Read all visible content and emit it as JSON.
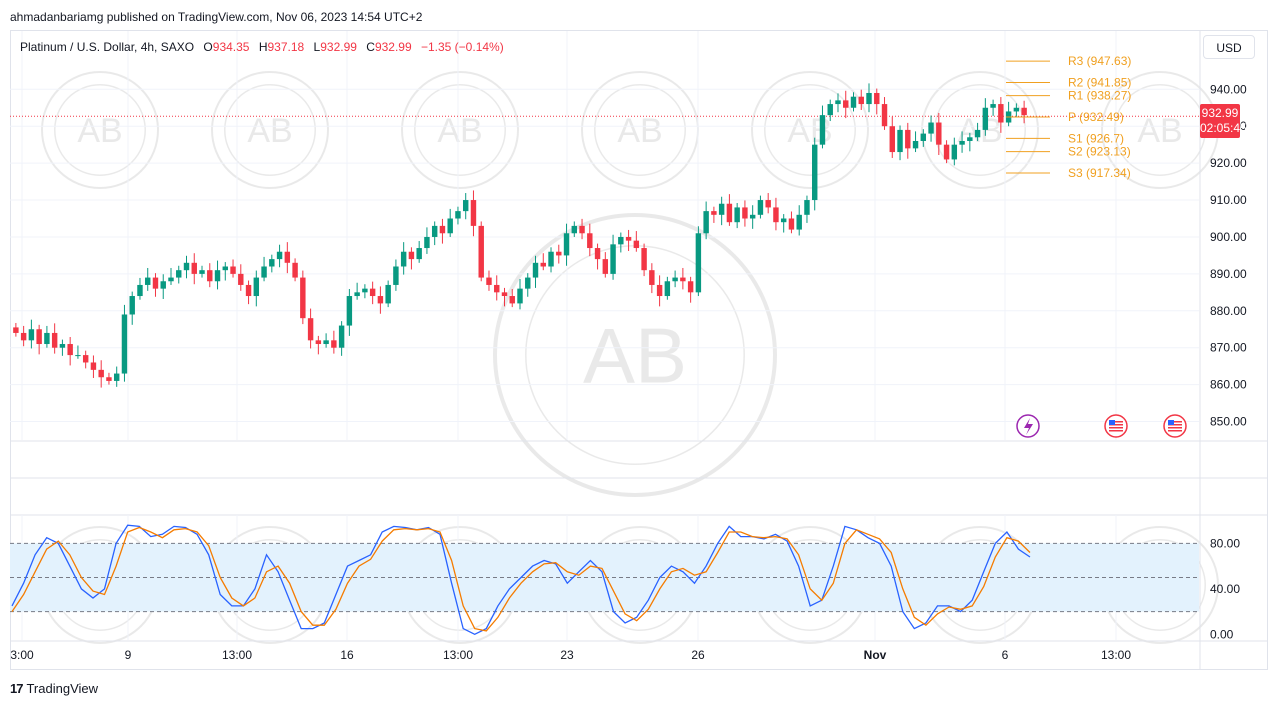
{
  "published": "ahmadanbariamg published on TradingView.com, Nov 06, 2023 14:54 UTC+2",
  "legend": {
    "symbol": "Platinum / U.S. Dollar, 4h, SAXO",
    "open_label": "O",
    "open": "934.35",
    "high_label": "H",
    "high": "937.18",
    "low_label": "L",
    "low": "932.99",
    "close_label": "C",
    "close": "932.99",
    "change": "−1.35 (−0.14%)"
  },
  "currency_button": "USD",
  "last_price": {
    "price": "932.99",
    "countdown": "02:05:45"
  },
  "watermark_text": "AB",
  "brand": "TradingView",
  "colors": {
    "up": "#089981",
    "down": "#f23645",
    "pivot": "#f0a020",
    "k_line": "#2962ff",
    "d_line": "#f57c00",
    "band": "#e3f2fd"
  },
  "chart_data": [
    {
      "type": "candlestick",
      "title": "Platinum / U.S. Dollar, 4h, SAXO",
      "ylim": [
        845,
        952
      ],
      "y_ticks": [
        "940.00",
        "930.00",
        "920.00",
        "910.00",
        "900.00",
        "890.00",
        "880.00",
        "870.00",
        "860.00",
        "850.00"
      ],
      "x_tick_labels": [
        "3:00",
        "9",
        "13:00",
        "16",
        "13:00",
        "23",
        "26",
        "Nov",
        "6",
        "13:00"
      ],
      "close_series": [
        874,
        872,
        875,
        871,
        874,
        870,
        871,
        868,
        868,
        866,
        864,
        862,
        861,
        863,
        879,
        884,
        887,
        889,
        886,
        888,
        889,
        891,
        893,
        890,
        891,
        888,
        891,
        892,
        890,
        887,
        884,
        889,
        892,
        894,
        896,
        893,
        889,
        878,
        872,
        871,
        872,
        870,
        876,
        884,
        885,
        886,
        884,
        882,
        887,
        892,
        896,
        894,
        897,
        900,
        903,
        901,
        905,
        907,
        910,
        903,
        889,
        887,
        885,
        884,
        882,
        886,
        889,
        893,
        892,
        896,
        895,
        901,
        903,
        901,
        897,
        894,
        890,
        898,
        900,
        899,
        897,
        891,
        887,
        884,
        888,
        889,
        888,
        885,
        901,
        907,
        906,
        909,
        904,
        908,
        905,
        906,
        910,
        908,
        904,
        905,
        902,
        906,
        910,
        925,
        933,
        936,
        937,
        935,
        938,
        936,
        939,
        936,
        930,
        923,
        929,
        924,
        926,
        928,
        931,
        925,
        921,
        925,
        926,
        927,
        929,
        935,
        936,
        931,
        934,
        935,
        933
      ],
      "pivots": [
        {
          "label": "R3",
          "value": 947.63,
          "text": "R3 (947.63)"
        },
        {
          "label": "R2",
          "value": 941.85,
          "text": "R2 (941.85)"
        },
        {
          "label": "R1",
          "value": 938.27,
          "text": "R1 (938.27)"
        },
        {
          "label": "P",
          "value": 932.49,
          "text": "P (932.49)"
        },
        {
          "label": "S1",
          "value": 926.7,
          "text": "S1 (926.7)"
        },
        {
          "label": "S2",
          "value": 923.13,
          "text": "S2 (923.13)"
        },
        {
          "label": "S3",
          "value": 917.34,
          "text": "S3 (917.34)"
        }
      ]
    },
    {
      "type": "line",
      "ylim": [
        -5,
        105
      ],
      "y_ticks": [
        "80.00",
        "40.00",
        "0.00"
      ],
      "band": [
        20,
        80
      ],
      "series": [
        {
          "name": "",
          "values": [
            25,
            45,
            70,
            85,
            80,
            60,
            40,
            32,
            40,
            80,
            96,
            95,
            86,
            88,
            95,
            94,
            88,
            70,
            35,
            25,
            25,
            40,
            70,
            55,
            30,
            5,
            5,
            10,
            35,
            60,
            65,
            70,
            90,
            95,
            94,
            92,
            94,
            88,
            45,
            5,
            0,
            5,
            25,
            40,
            50,
            60,
            65,
            62,
            45,
            55,
            65,
            55,
            20,
            10,
            15,
            30,
            50,
            60,
            55,
            45,
            60,
            80,
            95,
            86,
            86,
            84,
            88,
            82,
            60,
            25,
            30,
            60,
            95,
            92,
            85,
            80,
            60,
            20,
            5,
            10,
            25,
            25,
            20,
            30,
            55,
            80,
            90,
            75,
            68
          ]
        },
        {
          "name": "",
          "values": [
            20,
            35,
            55,
            75,
            82,
            70,
            50,
            38,
            35,
            60,
            90,
            94,
            90,
            85,
            92,
            93,
            90,
            78,
            50,
            32,
            25,
            32,
            55,
            60,
            45,
            20,
            8,
            8,
            22,
            45,
            60,
            66,
            82,
            92,
            93,
            92,
            93,
            90,
            65,
            25,
            5,
            3,
            15,
            32,
            45,
            55,
            62,
            63,
            55,
            52,
            60,
            58,
            38,
            18,
            12,
            22,
            40,
            55,
            58,
            52,
            55,
            72,
            90,
            90,
            86,
            85,
            86,
            84,
            70,
            40,
            30,
            45,
            80,
            92,
            88,
            84,
            72,
            40,
            15,
            8,
            18,
            24,
            22,
            25,
            42,
            68,
            85,
            82,
            72
          ]
        }
      ]
    }
  ]
}
